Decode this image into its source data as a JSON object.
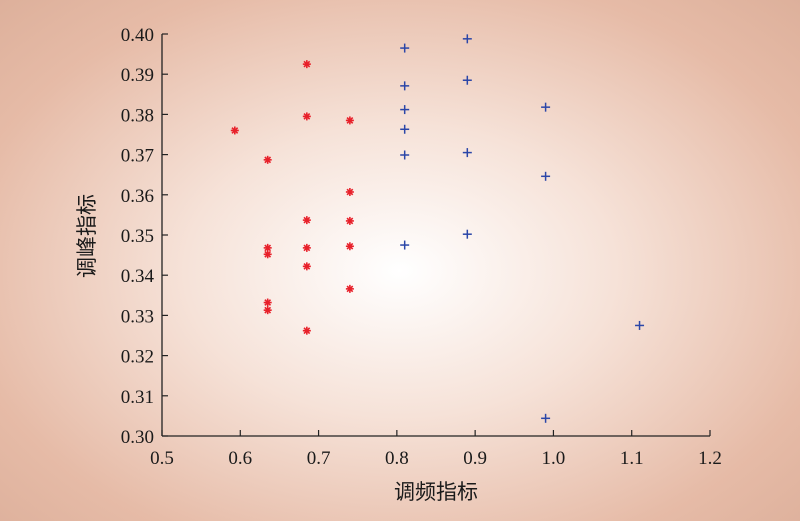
{
  "chart_data": {
    "type": "scatter",
    "xlabel": "调频指标",
    "ylabel": "调峰指标",
    "xlim": [
      0.5,
      1.2
    ],
    "ylim": [
      0.3,
      0.4
    ],
    "xticks": [
      "0.5",
      "0.6",
      "0.7",
      "0.8",
      "0.9",
      "1.0",
      "1.1",
      "1.2"
    ],
    "yticks": [
      "0.30",
      "0.31",
      "0.32",
      "0.33",
      "0.34",
      "0.35",
      "0.36",
      "0.37",
      "0.38",
      "0.39",
      "0.40"
    ],
    "grid": false,
    "legend": "none",
    "series": [
      {
        "marker": "asterisk",
        "color": "#e8202a",
        "points": [
          [
            0.593,
            0.376
          ],
          [
            0.635,
            0.3687
          ],
          [
            0.635,
            0.3468
          ],
          [
            0.635,
            0.3452
          ],
          [
            0.635,
            0.3332
          ],
          [
            0.635,
            0.3313
          ],
          [
            0.685,
            0.3925
          ],
          [
            0.685,
            0.3795
          ],
          [
            0.685,
            0.3537
          ],
          [
            0.685,
            0.3468
          ],
          [
            0.685,
            0.3422
          ],
          [
            0.685,
            0.3262
          ],
          [
            0.74,
            0.3785
          ],
          [
            0.74,
            0.3607
          ],
          [
            0.74,
            0.3535
          ],
          [
            0.74,
            0.3472
          ],
          [
            0.74,
            0.3366
          ]
        ]
      },
      {
        "marker": "plus",
        "color": "#2b46a8",
        "points": [
          [
            0.81,
            0.3965
          ],
          [
            0.81,
            0.3871
          ],
          [
            0.81,
            0.3812
          ],
          [
            0.81,
            0.3763
          ],
          [
            0.81,
            0.3699
          ],
          [
            0.81,
            0.3475
          ],
          [
            0.89,
            0.3988
          ],
          [
            0.89,
            0.3885
          ],
          [
            0.89,
            0.3705
          ],
          [
            0.89,
            0.3502
          ],
          [
            0.99,
            0.3818
          ],
          [
            0.99,
            0.3646
          ],
          [
            0.99,
            0.3044
          ],
          [
            1.11,
            0.3275
          ]
        ]
      }
    ]
  }
}
